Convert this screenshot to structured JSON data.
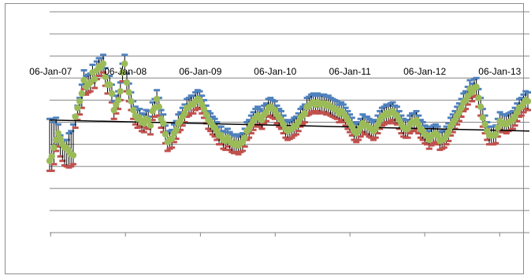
{
  "chart_data": {
    "type": "line",
    "title": "",
    "xlabel": "",
    "ylabel": "",
    "x_tick_labels": [
      "06-Jan-07",
      "06-Jan-08",
      "06-Jan-09",
      "06-Jan-10",
      "06-Jan-11",
      "06-Jan-12",
      "06-Jan-13"
    ],
    "x_range": [
      "2007-01-01",
      "2013-05-31"
    ],
    "y_range": [
      -8,
      12
    ],
    "y_gridlines": [
      -8,
      -6,
      -4,
      -2,
      0,
      2,
      4,
      6,
      8,
      10,
      12
    ],
    "y_tick_labels_shown": false,
    "grid": true,
    "legend": "none",
    "colors": {
      "high": "#4f81bd",
      "low": "#c0504d",
      "close": "#9bbb59",
      "trend": "#000000",
      "gridline": "#868686",
      "frame": "#8c8c8c"
    },
    "series": [
      {
        "marker": "high-bar",
        "color": "#4f81bd",
        "values": [
          2.3,
          2.3,
          2.0,
          2.4,
          1.8,
          0.8,
          0.2,
          -0.3,
          0.4,
          1.0,
          1.2,
          1.8,
          2.6,
          3.5,
          4.2,
          5.4,
          6.7,
          6.2,
          6.3,
          6.4,
          7.2,
          6.6,
          7.5,
          7.8,
          7.8,
          8.1,
          6.9,
          6.2,
          6.2,
          5.4,
          3.9,
          4.4,
          4.8,
          5.6,
          7.3,
          8.1,
          6.4,
          5.5,
          4.7,
          3.9,
          3.4,
          3.1,
          3.2,
          2.8,
          2.7,
          3.1,
          3.0,
          2.5,
          3.8,
          4.1,
          4.9,
          4.2,
          3.1,
          2.7,
          1.7,
          1.0,
          1.2,
          1.3,
          1.8,
          2.1,
          2.7,
          2.9,
          3.3,
          3.6,
          4.1,
          4.2,
          4.4,
          4.4,
          4.7,
          4.9,
          4.8,
          4.4,
          4.0,
          3.5,
          3.0,
          2.8,
          2.5,
          2.3,
          2.0,
          1.6,
          1.6,
          1.2,
          1.1,
          1.4,
          1.1,
          0.9,
          0.8,
          0.9,
          0.7,
          0.9,
          1.0,
          1.4,
          2.0,
          2.2,
          2.6,
          2.9,
          3.2,
          3.4,
          3.2,
          3.0,
          3.5,
          3.7,
          4.1,
          4.2,
          4.0,
          3.9,
          3.5,
          3.2,
          3.0,
          2.6,
          2.2,
          2.0,
          2.1,
          2.2,
          2.4,
          2.5,
          2.8,
          3.2,
          3.4,
          3.6,
          4.2,
          4.3,
          4.5,
          4.6,
          4.4,
          4.6,
          4.4,
          4.5,
          4.5,
          4.3,
          4.4,
          4.2,
          4.1,
          4.0,
          3.9,
          3.6,
          3.8,
          3.6,
          3.3,
          3.0,
          2.7,
          2.4,
          2.0,
          1.8,
          2.0,
          2.3,
          2.7,
          2.5,
          2.5,
          2.3,
          2.2,
          2.0,
          2.2,
          2.6,
          3.0,
          3.3,
          3.4,
          3.6,
          3.5,
          3.7,
          3.8,
          3.5,
          3.4,
          3.0,
          2.6,
          2.3,
          2.2,
          2.2,
          2.6,
          2.8,
          2.8,
          3.0,
          2.6,
          2.2,
          2.0,
          1.7,
          1.6,
          1.2,
          1.5,
          1.7,
          1.8,
          1.6,
          1.1,
          1.2,
          1.3,
          1.6,
          1.9,
          2.4,
          2.7,
          3.0,
          3.4,
          3.7,
          4.1,
          4.6,
          4.8,
          5.2,
          5.8,
          5.5,
          5.9,
          6.0,
          5.0,
          4.2,
          3.2,
          2.6,
          2.0,
          1.6,
          1.6,
          1.6,
          1.7,
          2.3,
          2.9,
          2.7,
          2.7,
          2.6,
          2.8,
          2.9,
          3.0,
          3.3,
          3.7,
          4.1,
          4.2,
          4.5,
          4.8,
          4.7
        ]
      },
      {
        "marker": "low-bar",
        "color": "#c0504d",
        "values": [
          -2.4,
          -2.4,
          -1.8,
          -0.6,
          -0.2,
          -1.1,
          -1.5,
          -1.9,
          -2.0,
          -2.1,
          -2.0,
          -1.8,
          1.5,
          2.2,
          2.7,
          3.3,
          5.0,
          4.5,
          4.7,
          4.8,
          5.6,
          5.1,
          5.9,
          6.2,
          6.2,
          6.5,
          5.3,
          4.6,
          4.6,
          3.8,
          2.3,
          2.8,
          3.2,
          4.0,
          5.7,
          6.5,
          4.8,
          3.9,
          3.1,
          2.3,
          1.8,
          1.5,
          1.6,
          1.2,
          1.1,
          1.5,
          1.4,
          0.9,
          2.2,
          2.5,
          3.3,
          2.6,
          1.5,
          1.1,
          0.1,
          -0.6,
          -0.4,
          -0.3,
          0.2,
          0.5,
          1.1,
          1.3,
          1.7,
          2.0,
          2.5,
          2.6,
          2.8,
          2.8,
          3.1,
          3.3,
          3.2,
          2.8,
          2.4,
          1.9,
          1.4,
          1.2,
          0.9,
          0.7,
          0.4,
          0.0,
          0.0,
          -0.4,
          -0.5,
          -0.2,
          -0.5,
          -0.7,
          -0.8,
          -0.7,
          -0.9,
          -0.7,
          -0.6,
          -0.2,
          0.4,
          0.6,
          1.0,
          1.3,
          1.6,
          1.8,
          1.6,
          1.4,
          1.9,
          2.1,
          2.5,
          2.6,
          2.4,
          2.3,
          1.9,
          1.6,
          1.4,
          1.0,
          0.6,
          0.4,
          0.5,
          0.6,
          0.8,
          0.9,
          1.2,
          1.6,
          1.8,
          2.0,
          2.6,
          2.7,
          2.9,
          3.0,
          2.8,
          3.0,
          2.8,
          2.9,
          2.9,
          2.7,
          2.8,
          2.6,
          2.5,
          2.4,
          2.3,
          2.0,
          2.2,
          2.0,
          1.7,
          1.4,
          1.1,
          0.8,
          0.4,
          0.2,
          0.4,
          0.7,
          1.1,
          0.9,
          0.9,
          0.7,
          0.6,
          0.4,
          0.6,
          1.0,
          1.4,
          1.7,
          1.8,
          2.0,
          1.9,
          2.1,
          2.2,
          1.9,
          1.8,
          1.4,
          1.0,
          0.7,
          0.6,
          0.6,
          1.0,
          1.2,
          1.2,
          1.4,
          1.0,
          0.6,
          0.4,
          0.1,
          0.0,
          -0.4,
          -0.1,
          0.1,
          0.2,
          0.0,
          -0.5,
          -0.4,
          -0.3,
          0.0,
          0.3,
          0.8,
          1.1,
          1.4,
          1.8,
          2.1,
          2.5,
          3.0,
          3.2,
          3.6,
          4.2,
          3.9,
          4.3,
          4.4,
          3.4,
          2.6,
          1.6,
          1.0,
          0.4,
          0.0,
          0.0,
          0.0,
          0.1,
          0.7,
          1.3,
          1.1,
          1.1,
          1.0,
          1.2,
          1.3,
          1.4,
          1.7,
          2.1,
          2.5,
          2.6,
          2.9,
          3.2,
          3.1
        ]
      },
      {
        "marker": "close-circle",
        "color": "#9bbb59",
        "values": [
          -1.5,
          -1.1,
          -0.3,
          0.4,
          1.0,
          0.5,
          0.0,
          -0.3,
          -0.3,
          -0.6,
          -0.9,
          -1.0,
          2.5,
          3.3,
          3.9,
          4.6,
          5.8,
          5.2,
          5.4,
          5.6,
          6.5,
          5.9,
          6.7,
          7.0,
          7.0,
          7.3,
          6.1,
          5.4,
          5.4,
          4.6,
          3.1,
          3.6,
          4.0,
          4.8,
          6.5,
          7.3,
          5.6,
          4.7,
          3.9,
          3.1,
          2.6,
          2.3,
          2.4,
          2.0,
          1.9,
          2.3,
          2.2,
          1.7,
          3.0,
          3.3,
          4.1,
          3.4,
          2.3,
          1.9,
          0.9,
          0.2,
          0.4,
          0.5,
          1.0,
          1.3,
          1.9,
          2.1,
          2.5,
          2.8,
          3.3,
          3.4,
          3.6,
          3.6,
          3.9,
          4.1,
          4.0,
          3.6,
          3.2,
          2.7,
          2.2,
          2.0,
          1.7,
          1.5,
          1.2,
          0.8,
          0.8,
          0.4,
          0.3,
          0.6,
          0.3,
          0.1,
          0.0,
          0.1,
          -0.1,
          0.1,
          0.2,
          0.6,
          1.2,
          1.4,
          1.8,
          2.1,
          2.4,
          2.6,
          2.4,
          2.2,
          2.7,
          2.9,
          3.3,
          3.4,
          3.2,
          3.1,
          2.7,
          2.4,
          2.2,
          1.8,
          1.4,
          1.2,
          1.3,
          1.4,
          1.6,
          1.7,
          2.0,
          2.4,
          2.6,
          2.8,
          3.4,
          3.5,
          3.7,
          3.8,
          3.6,
          3.8,
          3.6,
          3.7,
          3.7,
          3.5,
          3.6,
          3.4,
          3.3,
          3.2,
          3.1,
          2.8,
          3.0,
          2.8,
          2.5,
          2.2,
          1.9,
          1.6,
          1.2,
          1.0,
          1.2,
          1.5,
          1.9,
          1.7,
          1.7,
          1.5,
          1.4,
          1.2,
          1.4,
          1.8,
          2.2,
          2.5,
          2.6,
          2.8,
          2.7,
          2.9,
          3.0,
          2.7,
          2.6,
          2.2,
          1.8,
          1.5,
          1.4,
          1.4,
          1.8,
          2.0,
          2.0,
          2.2,
          1.8,
          1.4,
          1.2,
          0.9,
          0.8,
          0.4,
          0.7,
          0.9,
          1.0,
          0.8,
          0.3,
          0.4,
          0.5,
          0.8,
          1.1,
          1.6,
          1.9,
          2.2,
          2.6,
          2.9,
          3.3,
          3.8,
          4.0,
          4.4,
          5.0,
          4.7,
          5.1,
          5.2,
          4.2,
          3.4,
          2.4,
          1.8,
          1.2,
          0.8,
          0.8,
          0.8,
          0.9,
          1.5,
          2.1,
          1.9,
          1.9,
          1.8,
          2.0,
          2.1,
          2.2,
          2.5,
          2.9,
          3.3,
          3.4,
          3.7,
          4.0,
          3.9
        ]
      },
      {
        "marker": "trend-line",
        "color": "#000000",
        "values": [
          2.2,
          1.2
        ]
      }
    ]
  }
}
